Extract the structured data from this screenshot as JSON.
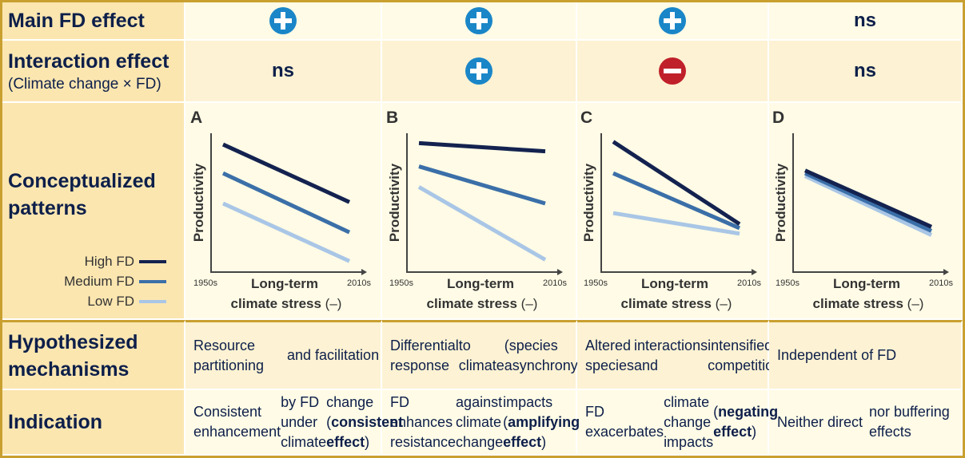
{
  "rows": {
    "main": "Main FD effect",
    "interaction": "Interaction effect",
    "interaction_sub": "(Climate change × FD)",
    "patterns": "Conceptualized patterns",
    "mechanisms": "Hypothesized mechanisms",
    "indication": "Indication"
  },
  "main_effects": [
    "plus",
    "plus",
    "plus",
    "ns"
  ],
  "interaction_effects": [
    "ns",
    "plus",
    "minus",
    "ns"
  ],
  "ns_label": "ns",
  "colors": {
    "plus": "#1a86c8",
    "minus": "#c0202a",
    "high": "#13224f",
    "medium": "#3b6fa8",
    "low": "#a9c6e6",
    "border": "#c9a030",
    "label_bg": "#fbe6b0"
  },
  "legend": {
    "high": "High FD",
    "medium": "Medium FD",
    "low": "Low FD"
  },
  "axes": {
    "y": "Productivity",
    "x_line1": "Long-term",
    "x_line2": "climate stress (–)",
    "x_start": "1950s",
    "x_end": "2010s"
  },
  "panels": [
    {
      "letter": "A",
      "high": [
        0.93,
        0.51
      ],
      "medium": [
        0.72,
        0.29
      ],
      "low": [
        0.5,
        0.08
      ]
    },
    {
      "letter": "B",
      "high": [
        0.94,
        0.88
      ],
      "medium": [
        0.77,
        0.5
      ],
      "low": [
        0.62,
        0.09
      ]
    },
    {
      "letter": "C",
      "high": [
        0.95,
        0.35
      ],
      "medium": [
        0.72,
        0.32
      ],
      "low": [
        0.43,
        0.28
      ]
    },
    {
      "letter": "D",
      "high": [
        0.74,
        0.33
      ],
      "medium": [
        0.72,
        0.3
      ],
      "low": [
        0.7,
        0.27
      ]
    }
  ],
  "mechanisms": [
    [
      "Resource partitioning",
      "and facilitation"
    ],
    [
      "Differential response",
      "to climate",
      "(species asynchrony)"
    ],
    [
      "Altered species",
      "interactions and",
      "intensified competition"
    ],
    [
      "Independent of FD"
    ]
  ],
  "indication": [
    {
      "lines": [
        "Consistent enhancement",
        "by FD under climate"
      ],
      "pre": "change (",
      "bold": "consistent effect",
      "post": ")"
    },
    {
      "lines": [
        "FD enhances resistance",
        "against climate change"
      ],
      "pre": "impacts (",
      "bold": "amplifying effect",
      "post": ")"
    },
    {
      "lines": [
        "FD exacerbates",
        "climate change impacts"
      ],
      "pre": "(",
      "bold": "negating effect",
      "post": ")"
    },
    {
      "lines": [
        "Neither direct",
        "nor buffering effects"
      ],
      "pre": "",
      "bold": "",
      "post": ""
    }
  ]
}
